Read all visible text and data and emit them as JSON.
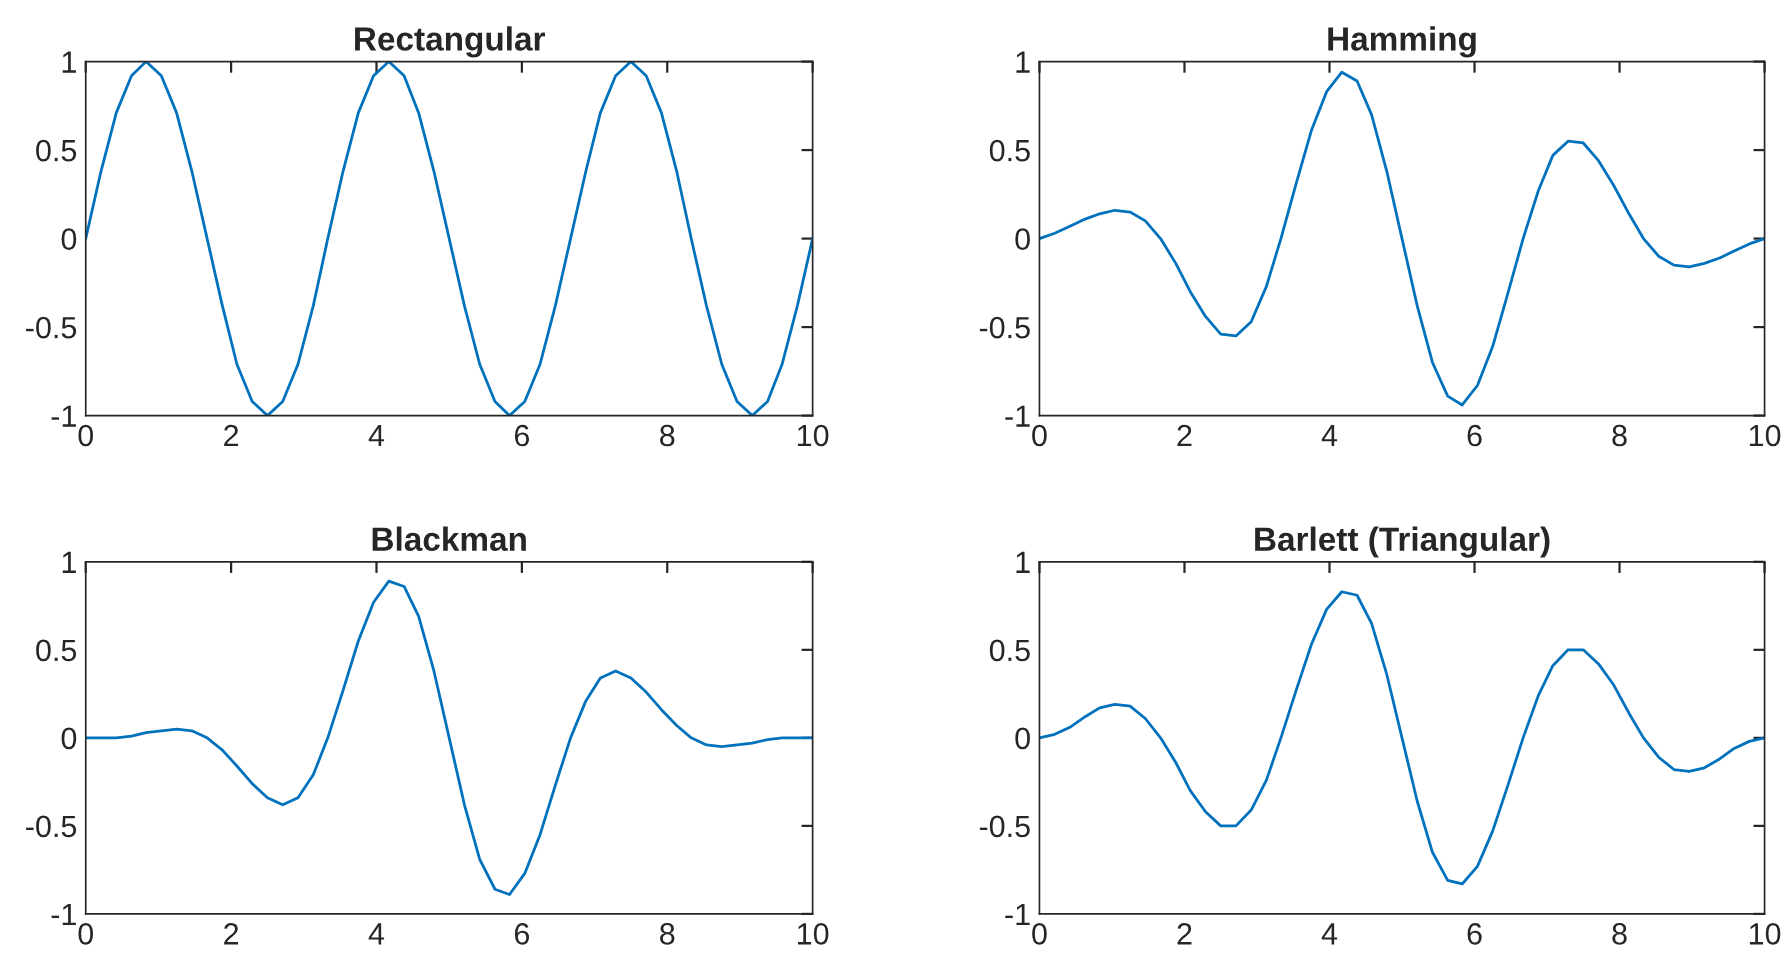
{
  "chart_data": [
    {
      "type": "line",
      "title": "Rectangular",
      "x": [
        0,
        0.21,
        0.42,
        0.63,
        0.83,
        1.04,
        1.25,
        1.46,
        1.67,
        1.88,
        2.08,
        2.29,
        2.5,
        2.71,
        2.92,
        3.13,
        3.33,
        3.54,
        3.75,
        3.96,
        4.17,
        4.38,
        4.58,
        4.79,
        5,
        5.21,
        5.42,
        5.63,
        5.83,
        6.04,
        6.25,
        6.46,
        6.67,
        6.88,
        7.08,
        7.29,
        7.5,
        7.71,
        7.92,
        8.13,
        8.33,
        8.54,
        8.75,
        8.96,
        9.17,
        9.38,
        9.58,
        9.79,
        10
      ],
      "series": [
        {
          "color": "#0072bd",
          "values": [
            0,
            0.38,
            0.71,
            0.92,
            1,
            0.92,
            0.71,
            0.38,
            0,
            -0.38,
            -0.71,
            -0.92,
            -1,
            -0.92,
            -0.71,
            -0.38,
            0,
            0.38,
            0.71,
            0.92,
            1,
            0.92,
            0.71,
            0.38,
            0,
            -0.38,
            -0.71,
            -0.92,
            -1,
            -0.92,
            -0.71,
            -0.38,
            0,
            0.38,
            0.71,
            0.92,
            1,
            0.92,
            0.71,
            0.38,
            0,
            -0.38,
            -0.71,
            -0.92,
            -1,
            -0.92,
            -0.71,
            -0.38,
            0
          ]
        }
      ],
      "xlim": [
        0,
        10
      ],
      "ylim": [
        -1,
        1
      ],
      "xticks": [
        0,
        2,
        4,
        6,
        8,
        10
      ],
      "yticks": [
        -1,
        -0.5,
        0,
        0.5,
        1
      ]
    },
    {
      "type": "line",
      "title": "Hamming",
      "x": [
        0,
        0.21,
        0.42,
        0.63,
        0.83,
        1.04,
        1.25,
        1.46,
        1.67,
        1.88,
        2.08,
        2.29,
        2.5,
        2.71,
        2.92,
        3.13,
        3.33,
        3.54,
        3.75,
        3.96,
        4.17,
        4.38,
        4.58,
        4.79,
        5,
        5.21,
        5.42,
        5.63,
        5.83,
        6.04,
        6.25,
        6.46,
        6.67,
        6.88,
        7.08,
        7.29,
        7.5,
        7.71,
        7.92,
        8.13,
        8.33,
        8.54,
        8.75,
        8.96,
        9.17,
        9.38,
        9.58,
        9.79,
        10
      ],
      "series": [
        {
          "color": "#0072bd",
          "values": [
            0,
            0.03,
            0.07,
            0.11,
            0.14,
            0.16,
            0.15,
            0.1,
            0,
            -0.14,
            -0.3,
            -0.44,
            -0.54,
            -0.55,
            -0.47,
            -0.27,
            0,
            0.31,
            0.61,
            0.83,
            0.94,
            0.89,
            0.7,
            0.38,
            0,
            -0.38,
            -0.7,
            -0.89,
            -0.94,
            -0.83,
            -0.61,
            -0.31,
            0,
            0.27,
            0.47,
            0.55,
            0.54,
            0.44,
            0.3,
            0.14,
            0,
            -0.1,
            -0.15,
            -0.16,
            -0.14,
            -0.11,
            -0.07,
            -0.03,
            0
          ]
        }
      ],
      "xlim": [
        0,
        10
      ],
      "ylim": [
        -1,
        1
      ],
      "xticks": [
        0,
        2,
        4,
        6,
        8,
        10
      ],
      "yticks": [
        -1,
        -0.5,
        0,
        0.5,
        1
      ]
    },
    {
      "type": "line",
      "title": "Blackman",
      "x": [
        0,
        0.21,
        0.42,
        0.63,
        0.83,
        1.04,
        1.25,
        1.46,
        1.67,
        1.88,
        2.08,
        2.29,
        2.5,
        2.71,
        2.92,
        3.13,
        3.33,
        3.54,
        3.75,
        3.96,
        4.17,
        4.38,
        4.58,
        4.79,
        5,
        5.21,
        5.42,
        5.63,
        5.83,
        6.04,
        6.25,
        6.46,
        6.67,
        6.88,
        7.08,
        7.29,
        7.5,
        7.71,
        7.92,
        8.13,
        8.33,
        8.54,
        8.75,
        8.96,
        9.17,
        9.38,
        9.58,
        9.79,
        10
      ],
      "series": [
        {
          "color": "#0072bd",
          "values": [
            0,
            0,
            0,
            0.01,
            0.03,
            0.04,
            0.05,
            0.04,
            0,
            -0.07,
            -0.16,
            -0.26,
            -0.34,
            -0.38,
            -0.34,
            -0.21,
            0,
            0.27,
            0.55,
            0.77,
            0.89,
            0.86,
            0.69,
            0.38,
            0,
            -0.38,
            -0.69,
            -0.86,
            -0.89,
            -0.77,
            -0.55,
            -0.27,
            0,
            0.21,
            0.34,
            0.38,
            0.34,
            0.26,
            0.16,
            0.07,
            0,
            -0.04,
            -0.05,
            -0.04,
            -0.03,
            -0.01,
            0,
            0,
            0
          ]
        }
      ],
      "xlim": [
        0,
        10
      ],
      "ylim": [
        -1,
        1
      ],
      "xticks": [
        0,
        2,
        4,
        6,
        8,
        10
      ],
      "yticks": [
        -1,
        -0.5,
        0,
        0.5,
        1
      ]
    },
    {
      "type": "line",
      "title": "Barlett (Triangular)",
      "x": [
        0,
        0.21,
        0.42,
        0.63,
        0.83,
        1.04,
        1.25,
        1.46,
        1.67,
        1.88,
        2.08,
        2.29,
        2.5,
        2.71,
        2.92,
        3.13,
        3.33,
        3.54,
        3.75,
        3.96,
        4.17,
        4.38,
        4.58,
        4.79,
        5,
        5.21,
        5.42,
        5.63,
        5.83,
        6.04,
        6.25,
        6.46,
        6.67,
        6.88,
        7.08,
        7.29,
        7.5,
        7.71,
        7.92,
        8.13,
        8.33,
        8.54,
        8.75,
        8.96,
        9.17,
        9.38,
        9.58,
        9.79,
        10
      ],
      "series": [
        {
          "color": "#0072bd",
          "values": [
            0,
            0.02,
            0.06,
            0.12,
            0.17,
            0.19,
            0.18,
            0.11,
            0,
            -0.14,
            -0.3,
            -0.42,
            -0.5,
            -0.5,
            -0.41,
            -0.24,
            0,
            0.27,
            0.53,
            0.73,
            0.83,
            0.81,
            0.65,
            0.36,
            0,
            -0.36,
            -0.65,
            -0.81,
            -0.83,
            -0.73,
            -0.53,
            -0.27,
            0,
            0.24,
            0.41,
            0.5,
            0.5,
            0.42,
            0.3,
            0.14,
            0,
            -0.11,
            -0.18,
            -0.19,
            -0.17,
            -0.12,
            -0.06,
            -0.02,
            0
          ]
        }
      ],
      "xlim": [
        0,
        10
      ],
      "ylim": [
        -1,
        1
      ],
      "xticks": [
        0,
        2,
        4,
        6,
        8,
        10
      ],
      "yticks": [
        -1,
        -0.5,
        0,
        0.5,
        1
      ]
    }
  ]
}
